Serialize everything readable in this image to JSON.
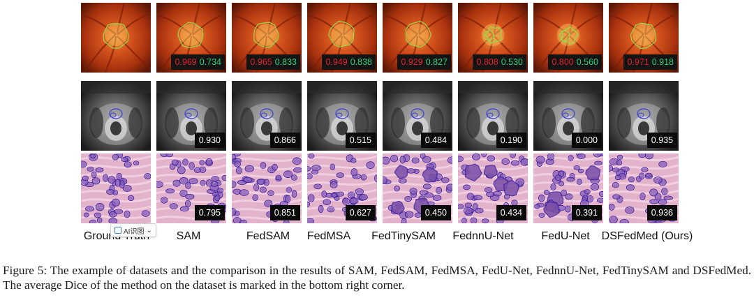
{
  "methods": [
    "Ground Truth",
    "SAM",
    "FedSAM",
    "FedMSA",
    "FedTinySAM",
    "FednnU-Net",
    "FedU-Net",
    "DSFedMed (Ours)"
  ],
  "rows": [
    {
      "dataset": "fundus",
      "scores": [
        null,
        [
          "0.969",
          "0.734"
        ],
        [
          "0.965",
          "0.833"
        ],
        [
          "0.949",
          "0.838"
        ],
        [
          "0.929",
          "0.827"
        ],
        [
          "0.808",
          "0.530"
        ],
        [
          "0.800",
          "0.560"
        ],
        [
          "0.971",
          "0.918"
        ]
      ]
    },
    {
      "dataset": "prostate",
      "scores": [
        null,
        "0.930",
        "0.866",
        "0.515",
        "0.484",
        "0.190",
        "0.000",
        "0.935"
      ]
    },
    {
      "dataset": "nuclei",
      "scores": [
        null,
        "0.795",
        "0.851",
        "0.627",
        "0.450",
        "0.434",
        "0.391",
        "0.936"
      ]
    }
  ],
  "overlay_badge": {
    "label": "AI识图"
  },
  "caption": "Figure 5: The example of datasets and the comparison in the results of SAM, FedSAM, FedMSA, FedU-Net, FednnU-Net, FedTinySAM and DSFedMed. The average Dice of the method on the dataset is marked in the bottom right corner.",
  "colors": {
    "score_red": "#e8202a",
    "score_green": "#2fd07a",
    "contour_green": "#8fe04a",
    "contour_blue": "#3a3ad8"
  }
}
